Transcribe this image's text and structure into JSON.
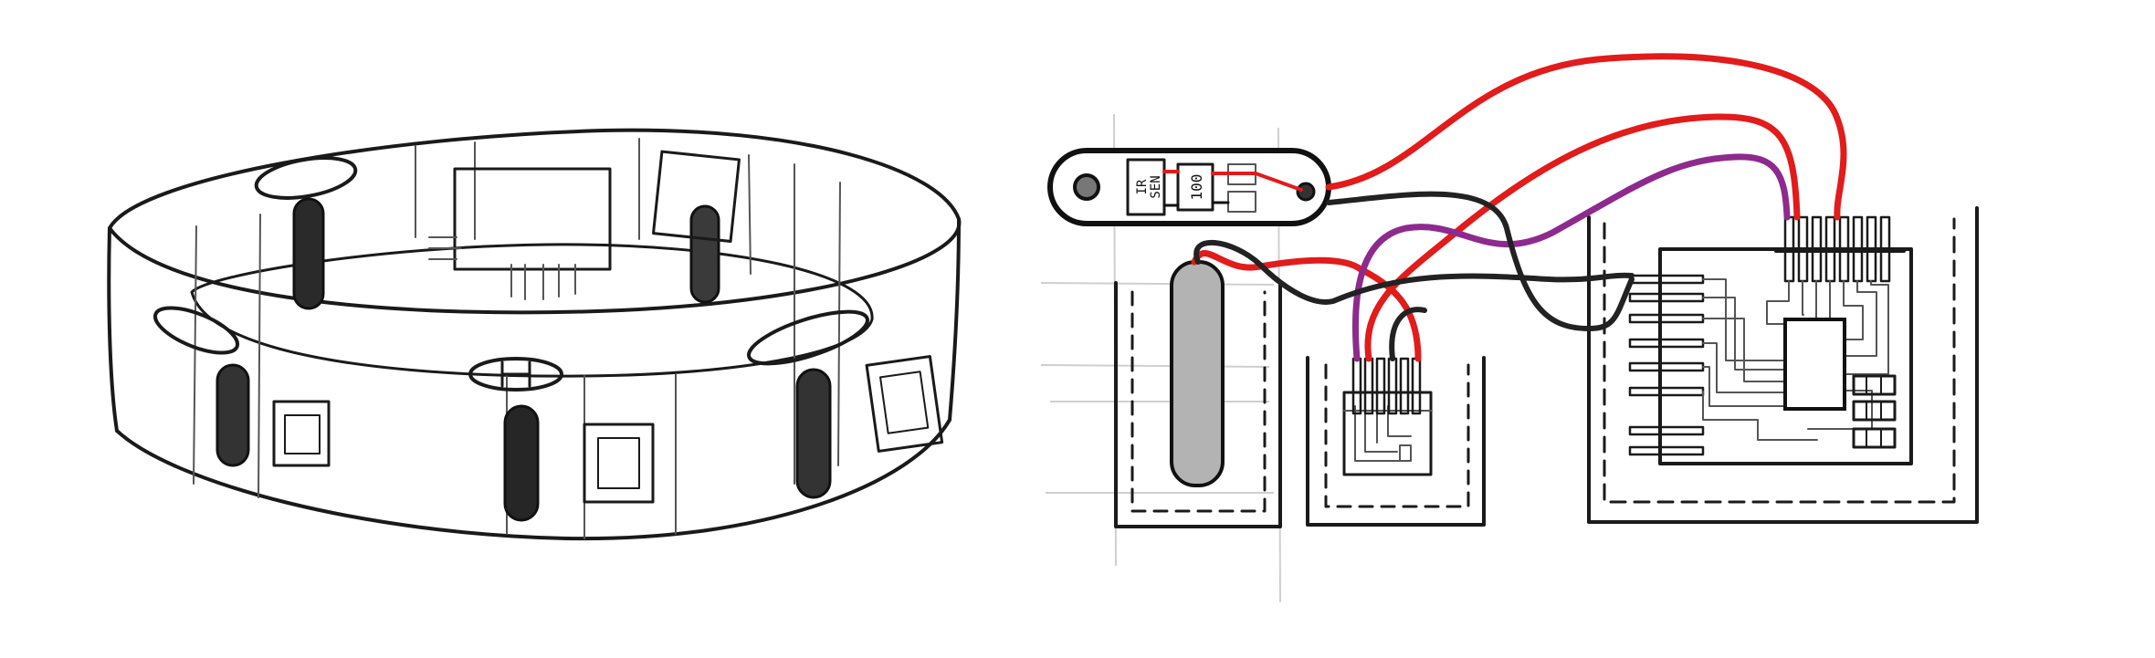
{
  "sensor_board": {
    "chip_label_line1": "IR",
    "chip_label_line2": "SEN",
    "resistor_label": "100"
  },
  "colors": {
    "wire_red": "#e21b1b",
    "wire_black": "#222222",
    "wire_purple": "#8e2a8e",
    "battery_fill": "#b3b3b3",
    "sketch_stroke": "#1a1a1a",
    "grid_stroke": "#cfcfcf"
  }
}
